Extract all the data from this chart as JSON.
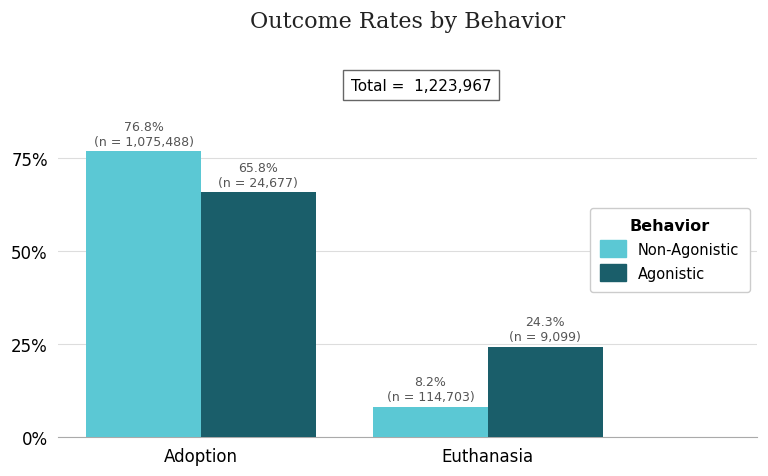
{
  "title": "Outcome Rates by Behavior",
  "total_label": "Total =  1,223,967",
  "categories": [
    "Adoption",
    "Euthanasia"
  ],
  "non_agonistic_values": [
    76.8,
    8.2
  ],
  "agonistic_values": [
    65.8,
    24.3
  ],
  "non_agonistic_labels": [
    "76.8%\n(n = 1,075,488)",
    "8.2%\n(n = 114,703)"
  ],
  "agonistic_labels": [
    "65.8%\n(n = 24,677)",
    "24.3%\n(n = 9,099)"
  ],
  "non_agonistic_color": "#5BC8D4",
  "agonistic_color": "#1A5E6A",
  "background_color": "#FFFFFF",
  "grid_color": "#DDDDDD",
  "ylim": [
    0,
    100
  ],
  "yticks": [
    0,
    25,
    50,
    75
  ],
  "ytick_labels": [
    "0%",
    "25%",
    "50%",
    "75%"
  ],
  "legend_title": "Behavior",
  "legend_labels": [
    "Non-Agonistic",
    "Agonistic"
  ],
  "bar_width": 0.32,
  "title_fontsize": 16,
  "tick_fontsize": 12,
  "label_fontsize": 9
}
